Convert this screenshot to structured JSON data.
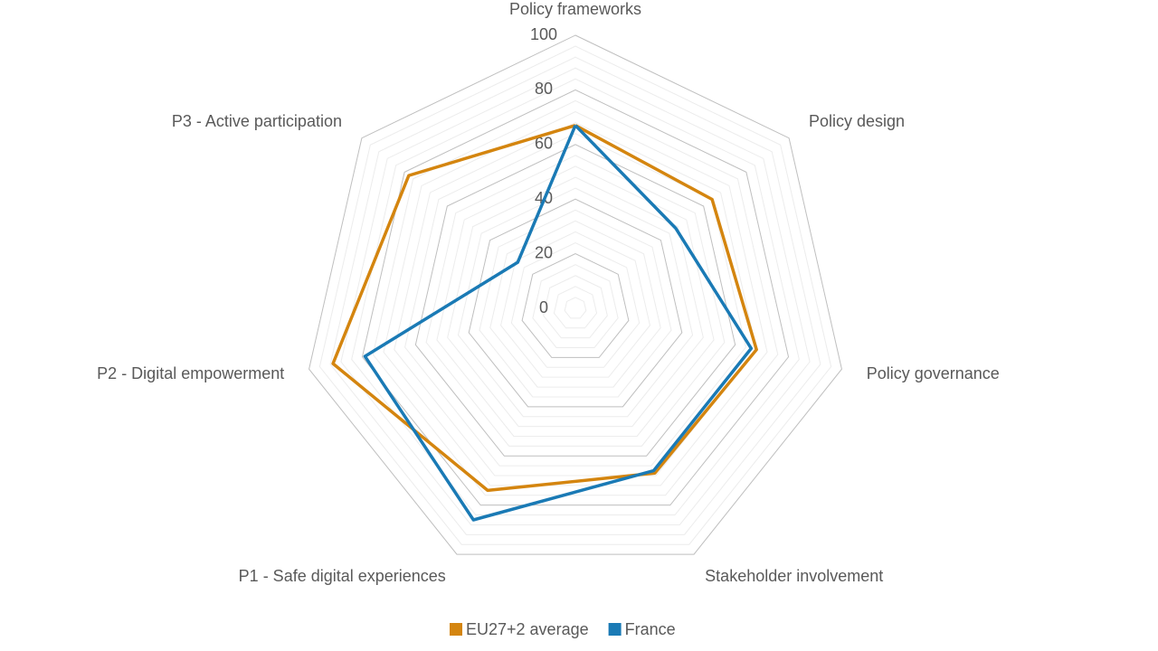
{
  "chart_data": {
    "type": "radar",
    "categories": [
      "Policy frameworks",
      "Policy design",
      "Policy governance",
      "Stakeholder involvement",
      "P1 - Safe digital experiences",
      "P2 - Digital empowerment",
      "P3 - Active participation"
    ],
    "series": [
      {
        "name": "EU27+2 average",
        "color": "#d4850f",
        "values": [
          67,
          64,
          68,
          67,
          74,
          91,
          78
        ]
      },
      {
        "name": "France",
        "color": "#1a7ab5",
        "values": [
          67,
          47,
          66,
          66,
          86,
          79,
          27
        ]
      }
    ],
    "ylim": [
      0,
      100
    ],
    "yticks": [
      0,
      20,
      40,
      60,
      80,
      100
    ],
    "grid": true,
    "legend": "bottom"
  }
}
